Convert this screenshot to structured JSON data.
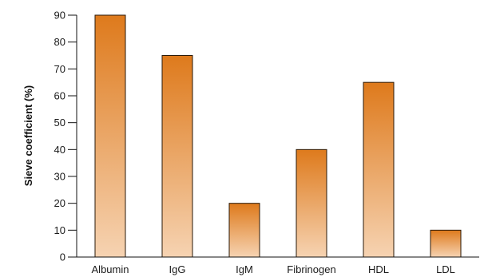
{
  "chart_data": {
    "type": "bar",
    "title": "",
    "xlabel": "",
    "ylabel": "Sieve coefficient (%)",
    "categories": [
      "Albumin",
      "IgG",
      "IgM",
      "Fibrinogen",
      "HDL",
      "LDL"
    ],
    "values": [
      90,
      75,
      20,
      40,
      65,
      10
    ],
    "ylim": [
      0,
      90
    ],
    "yticks": [
      0,
      10,
      20,
      30,
      40,
      50,
      60,
      70,
      80,
      90
    ],
    "grid": false,
    "legend": "none",
    "colors": {
      "bar_top": "#de7a1c",
      "bar_bottom": "#f6d3b2",
      "bar_stroke": "#2a1a0a",
      "axis": "#111111"
    }
  }
}
